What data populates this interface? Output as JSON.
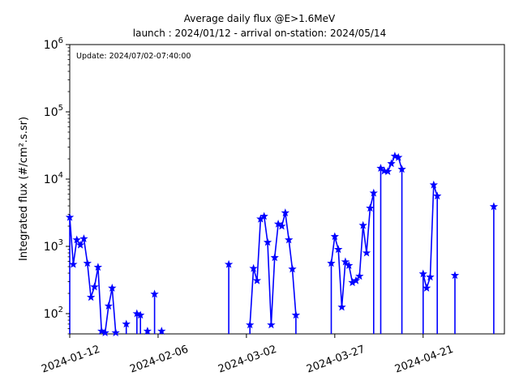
{
  "chart_data": {
    "type": "line",
    "title": "Average daily flux @E>1.6MeV",
    "subtitle": "launch : 2024/01/12 - arrival on-station: 2024/05/14",
    "ylabel": "Integrated flux (#/cm².s.sr)",
    "xlabel": "",
    "annotation": "Update: 2024/07/02-07:40:00",
    "y_scale": "log",
    "ylim": [
      50,
      1000000
    ],
    "xlim": [
      "2024-01-12",
      "2024-05-14"
    ],
    "y_ticks": [
      {
        "value": 100,
        "base": "10",
        "exp": "2"
      },
      {
        "value": 1000,
        "base": "10",
        "exp": "3"
      },
      {
        "value": 10000,
        "base": "10",
        "exp": "4"
      },
      {
        "value": 100000,
        "base": "10",
        "exp": "5"
      },
      {
        "value": 1000000,
        "base": "10",
        "exp": "6"
      }
    ],
    "x_ticks": [
      "2024-01-12",
      "2024-02-06",
      "2024-03-02",
      "2024-03-27",
      "2024-04-21"
    ],
    "grid": false,
    "color": "#0000ff",
    "marker": "star",
    "series": [
      {
        "points": [
          [
            "2024-01-12",
            2700
          ],
          [
            "2024-01-13",
            540
          ],
          [
            "2024-01-14",
            1250
          ],
          [
            "2024-01-15",
            1050
          ],
          [
            "2024-01-16",
            1300
          ],
          [
            "2024-01-17",
            560
          ],
          [
            "2024-01-18",
            175
          ],
          [
            "2024-01-19",
            250
          ],
          [
            "2024-01-20",
            490
          ],
          [
            "2024-01-21",
            55
          ],
          [
            "2024-01-22",
            52
          ],
          [
            "2024-01-23",
            130
          ],
          [
            "2024-01-24",
            240
          ],
          [
            "2024-01-25",
            52
          ],
          [
            "2024-01-28",
            70
          ],
          [
            "2024-01-31",
            100
          ],
          [
            "2024-02-01",
            95
          ],
          [
            "2024-02-03",
            55
          ],
          [
            "2024-02-05",
            195
          ],
          [
            "2024-02-07",
            55
          ],
          [
            "2024-02-26",
            540
          ],
          [
            "2024-03-03",
            68
          ],
          [
            "2024-03-04",
            470
          ],
          [
            "2024-03-05",
            310
          ],
          [
            "2024-03-06",
            2550
          ],
          [
            "2024-03-07",
            2800
          ],
          [
            "2024-03-08",
            1150
          ],
          [
            "2024-03-09",
            68
          ],
          [
            "2024-03-10",
            680
          ],
          [
            "2024-03-11",
            2150
          ],
          [
            "2024-03-12",
            2000
          ],
          [
            "2024-03-13",
            3150
          ],
          [
            "2024-03-14",
            1250
          ],
          [
            "2024-03-15",
            460
          ],
          [
            "2024-03-16",
            95
          ],
          [
            "2024-03-26",
            560
          ],
          [
            "2024-03-27",
            1400
          ],
          [
            "2024-03-28",
            900
          ],
          [
            "2024-03-29",
            125
          ],
          [
            "2024-03-30",
            590
          ],
          [
            "2024-03-31",
            520
          ],
          [
            "2024-04-01",
            290
          ],
          [
            "2024-04-02",
            310
          ],
          [
            "2024-04-03",
            360
          ],
          [
            "2024-04-04",
            2050
          ],
          [
            "2024-04-05",
            800
          ],
          [
            "2024-04-06",
            3700
          ],
          [
            "2024-04-07",
            6200
          ],
          [
            "2024-04-09",
            14500
          ],
          [
            "2024-04-10",
            13200
          ],
          [
            "2024-04-11",
            13000
          ],
          [
            "2024-04-12",
            17000
          ],
          [
            "2024-04-13",
            22000
          ],
          [
            "2024-04-14",
            21000
          ],
          [
            "2024-04-15",
            14000
          ],
          [
            "2024-04-21",
            390
          ],
          [
            "2024-04-22",
            240
          ],
          [
            "2024-04-23",
            350
          ],
          [
            "2024-04-24",
            8200
          ],
          [
            "2024-04-25",
            5600
          ],
          [
            "2024-04-30",
            370
          ],
          [
            "2024-05-11",
            3900
          ]
        ]
      }
    ]
  }
}
